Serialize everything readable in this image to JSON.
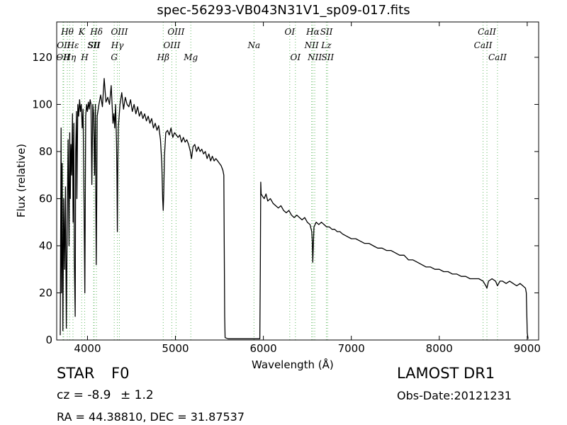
{
  "chart_data": {
    "type": "line",
    "title": "spec-56293-VB043N31V1_sp09-017.fits",
    "xlabel": "Wavelength (Å)",
    "ylabel": "Flux (relative)",
    "xlim": [
      3650,
      9130
    ],
    "ylim": [
      0,
      135
    ],
    "xticks": [
      4000,
      5000,
      6000,
      7000,
      8000,
      9000
    ],
    "yticks": [
      0,
      20,
      40,
      60,
      80,
      100,
      120
    ],
    "grid": false,
    "series": [
      {
        "points": [
          [
            3690,
            2
          ],
          [
            3700,
            90
          ],
          [
            3705,
            20
          ],
          [
            3712,
            75
          ],
          [
            3720,
            4
          ],
          [
            3730,
            60
          ],
          [
            3740,
            30
          ],
          [
            3750,
            65
          ],
          [
            3760,
            5
          ],
          [
            3770,
            50
          ],
          [
            3780,
            85
          ],
          [
            3790,
            40
          ],
          [
            3798,
            88
          ],
          [
            3805,
            60
          ],
          [
            3812,
            83
          ],
          [
            3820,
            70
          ],
          [
            3830,
            96
          ],
          [
            3836,
            50
          ],
          [
            3845,
            92
          ],
          [
            3850,
            35
          ],
          [
            3860,
            10
          ],
          [
            3866,
            80
          ],
          [
            3875,
            97
          ],
          [
            3880,
            60
          ],
          [
            3890,
            100
          ],
          [
            3900,
            95
          ],
          [
            3910,
            102
          ],
          [
            3920,
            97
          ],
          [
            3930,
            100
          ],
          [
            3940,
            90
          ],
          [
            3950,
            98
          ],
          [
            3960,
            60
          ],
          [
            3970,
            20
          ],
          [
            3980,
            95
          ],
          [
            3990,
            100
          ],
          [
            4000,
            97
          ],
          [
            4010,
            101
          ],
          [
            4020,
            98
          ],
          [
            4030,
            102
          ],
          [
            4040,
            100
          ],
          [
            4050,
            66
          ],
          [
            4060,
            100
          ],
          [
            4070,
            96
          ],
          [
            4080,
            70
          ],
          [
            4090,
            100
          ],
          [
            4095,
            60
          ],
          [
            4100,
            32
          ],
          [
            4105,
            60
          ],
          [
            4110,
            95
          ],
          [
            4130,
            100
          ],
          [
            4150,
            104
          ],
          [
            4170,
            99
          ],
          [
            4190,
            111
          ],
          [
            4210,
            101
          ],
          [
            4230,
            103
          ],
          [
            4250,
            100
          ],
          [
            4270,
            108
          ],
          [
            4290,
            92
          ],
          [
            4300,
            96
          ],
          [
            4310,
            90
          ],
          [
            4320,
            100
          ],
          [
            4330,
            84
          ],
          [
            4335,
            70
          ],
          [
            4340,
            46
          ],
          [
            4345,
            72
          ],
          [
            4350,
            90
          ],
          [
            4370,
            100
          ],
          [
            4390,
            105
          ],
          [
            4410,
            98
          ],
          [
            4430,
            103
          ],
          [
            4450,
            100
          ],
          [
            4470,
            99
          ],
          [
            4490,
            102
          ],
          [
            4510,
            97
          ],
          [
            4530,
            100
          ],
          [
            4550,
            96
          ],
          [
            4570,
            99
          ],
          [
            4590,
            95
          ],
          [
            4610,
            97
          ],
          [
            4630,
            94
          ],
          [
            4650,
            96
          ],
          [
            4670,
            93
          ],
          [
            4690,
            95
          ],
          [
            4710,
            92
          ],
          [
            4730,
            94
          ],
          [
            4750,
            90
          ],
          [
            4770,
            92
          ],
          [
            4790,
            89
          ],
          [
            4810,
            91
          ],
          [
            4830,
            85
          ],
          [
            4845,
            75
          ],
          [
            4855,
            60
          ],
          [
            4861,
            55
          ],
          [
            4867,
            62
          ],
          [
            4875,
            78
          ],
          [
            4890,
            88
          ],
          [
            4910,
            89
          ],
          [
            4930,
            87
          ],
          [
            4950,
            90
          ],
          [
            4970,
            86
          ],
          [
            4990,
            88
          ],
          [
            5010,
            87
          ],
          [
            5030,
            86
          ],
          [
            5050,
            87
          ],
          [
            5070,
            84
          ],
          [
            5090,
            86
          ],
          [
            5110,
            84
          ],
          [
            5130,
            85
          ],
          [
            5150,
            83
          ],
          [
            5170,
            80
          ],
          [
            5183,
            77
          ],
          [
            5200,
            82
          ],
          [
            5220,
            83
          ],
          [
            5240,
            80
          ],
          [
            5260,
            82
          ],
          [
            5280,
            80
          ],
          [
            5300,
            81
          ],
          [
            5320,
            79
          ],
          [
            5340,
            80
          ],
          [
            5360,
            77
          ],
          [
            5380,
            79
          ],
          [
            5400,
            76
          ],
          [
            5420,
            78
          ],
          [
            5440,
            76
          ],
          [
            5460,
            77
          ],
          [
            5480,
            76
          ],
          [
            5500,
            75
          ],
          [
            5520,
            74
          ],
          [
            5540,
            72
          ],
          [
            5550,
            70
          ],
          [
            5555,
            40
          ],
          [
            5560,
            10
          ],
          [
            5565,
            1
          ],
          [
            5600,
            0.5
          ],
          [
            5700,
            0.5
          ],
          [
            5800,
            0.5
          ],
          [
            5900,
            0.5
          ],
          [
            5960,
            0.5
          ],
          [
            5965,
            30
          ],
          [
            5970,
            67
          ],
          [
            5975,
            62
          ],
          [
            5990,
            61
          ],
          [
            6010,
            60
          ],
          [
            6030,
            62
          ],
          [
            6050,
            59
          ],
          [
            6080,
            60
          ],
          [
            6110,
            58
          ],
          [
            6140,
            57
          ],
          [
            6170,
            56
          ],
          [
            6200,
            57
          ],
          [
            6230,
            55
          ],
          [
            6260,
            54
          ],
          [
            6290,
            55
          ],
          [
            6320,
            53
          ],
          [
            6350,
            52
          ],
          [
            6380,
            53
          ],
          [
            6410,
            52
          ],
          [
            6440,
            51
          ],
          [
            6470,
            52
          ],
          [
            6500,
            50
          ],
          [
            6530,
            49
          ],
          [
            6550,
            46
          ],
          [
            6556,
            42
          ],
          [
            6562,
            33
          ],
          [
            6568,
            40
          ],
          [
            6575,
            48
          ],
          [
            6600,
            50
          ],
          [
            6630,
            49
          ],
          [
            6660,
            50
          ],
          [
            6690,
            49
          ],
          [
            6720,
            48
          ],
          [
            6750,
            48
          ],
          [
            6780,
            47
          ],
          [
            6810,
            47
          ],
          [
            6840,
            46
          ],
          [
            6870,
            46
          ],
          [
            6900,
            45
          ],
          [
            6950,
            44
          ],
          [
            7000,
            43
          ],
          [
            7050,
            43
          ],
          [
            7100,
            42
          ],
          [
            7150,
            41
          ],
          [
            7200,
            41
          ],
          [
            7250,
            40
          ],
          [
            7300,
            39
          ],
          [
            7350,
            39
          ],
          [
            7400,
            38
          ],
          [
            7450,
            38
          ],
          [
            7500,
            37
          ],
          [
            7550,
            36
          ],
          [
            7600,
            36
          ],
          [
            7650,
            34
          ],
          [
            7700,
            34
          ],
          [
            7750,
            33
          ],
          [
            7800,
            32
          ],
          [
            7850,
            31
          ],
          [
            7900,
            31
          ],
          [
            7950,
            30
          ],
          [
            8000,
            30
          ],
          [
            8050,
            29
          ],
          [
            8100,
            29
          ],
          [
            8150,
            28
          ],
          [
            8200,
            28
          ],
          [
            8250,
            27
          ],
          [
            8300,
            27
          ],
          [
            8350,
            26
          ],
          [
            8400,
            26
          ],
          [
            8450,
            26
          ],
          [
            8498,
            25
          ],
          [
            8530,
            23
          ],
          [
            8542,
            22
          ],
          [
            8560,
            25
          ],
          [
            8600,
            26
          ],
          [
            8640,
            25
          ],
          [
            8662,
            23
          ],
          [
            8690,
            25
          ],
          [
            8720,
            25
          ],
          [
            8760,
            24
          ],
          [
            8800,
            25
          ],
          [
            8840,
            24
          ],
          [
            8880,
            23
          ],
          [
            8920,
            24
          ],
          [
            8950,
            23
          ],
          [
            8980,
            22
          ],
          [
            8990,
            20
          ],
          [
            9000,
            3
          ],
          [
            9010,
            0.5
          ]
        ]
      }
    ],
    "lines": [
      {
        "x": 3722,
        "label": "OII",
        "row": 2
      },
      {
        "x": 3730,
        "label": "OII",
        "row": 1
      },
      {
        "x": 3771,
        "label": "Hθ",
        "row": 0
      },
      {
        "x": 3798,
        "label": "Hη",
        "row": 2
      },
      {
        "x": 3835,
        "label": "Hε",
        "row": 1
      },
      {
        "x": 3934,
        "label": "K",
        "row": 0
      },
      {
        "x": 3968,
        "label": "H",
        "row": 2
      },
      {
        "x": 4070,
        "label": "SII",
        "row": 1
      },
      {
        "x": 4076,
        "label": "SII",
        "row": 1
      },
      {
        "x": 4102,
        "label": "Hδ",
        "row": 0
      },
      {
        "x": 4304,
        "label": "G",
        "row": 2
      },
      {
        "x": 4340,
        "label": "Hγ",
        "row": 1
      },
      {
        "x": 4363,
        "label": "OIII",
        "row": 0
      },
      {
        "x": 4861,
        "label": "Hβ",
        "row": 2
      },
      {
        "x": 4959,
        "label": "OIII",
        "row": 1
      },
      {
        "x": 5007,
        "label": "OIII",
        "row": 0
      },
      {
        "x": 5175,
        "label": "Mg",
        "row": 2
      },
      {
        "x": 5893,
        "label": "Na",
        "row": 1
      },
      {
        "x": 6300,
        "label": "OI",
        "row": 0
      },
      {
        "x": 6364,
        "label": "OI",
        "row": 2
      },
      {
        "x": 6548,
        "label": "NII",
        "row": 1
      },
      {
        "x": 6563,
        "label": "Hα",
        "row": 0
      },
      {
        "x": 6584,
        "label": "NII",
        "row": 2
      },
      {
        "x": 6717,
        "label": "SII",
        "row": 0
      },
      {
        "x": 6731,
        "label": "SII",
        "row": 2
      },
      {
        "x": 6716,
        "label": "Lz",
        "row": 1
      },
      {
        "x": 8498,
        "label": "CaII",
        "row": 1
      },
      {
        "x": 8542,
        "label": "CaII",
        "row": 0
      },
      {
        "x": 8662,
        "label": "CaII",
        "row": 2
      }
    ]
  },
  "info": {
    "object_class": "STAR",
    "subclass": "F0",
    "survey": "LAMOST DR1",
    "cz_value": "cz = -8.9",
    "cz_err": "± 1.2",
    "obs_date": "Obs-Date:20121231",
    "coords": "RA = 44.38810, DEC = 31.87537"
  }
}
